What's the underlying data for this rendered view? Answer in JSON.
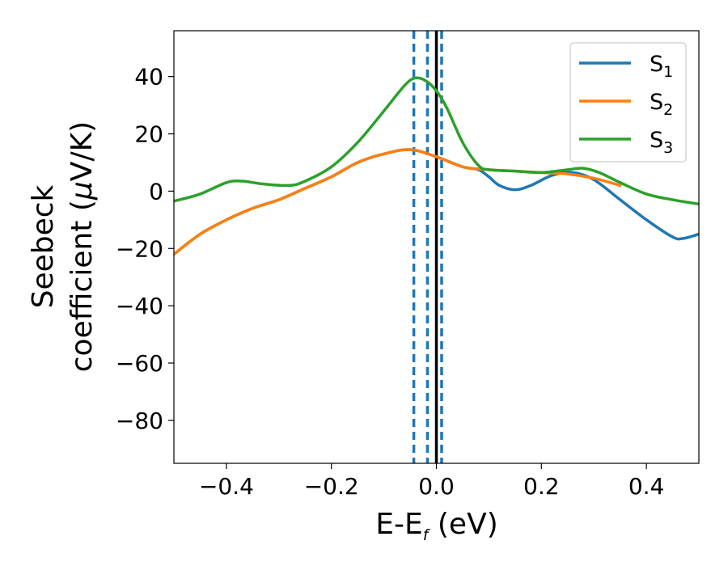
{
  "chart_data": {
    "type": "line",
    "title": "",
    "xlabel": {
      "main": "E-E",
      "sub": "f",
      "unit": " (eV)"
    },
    "ylabel": {
      "line1": "Seebeck",
      "line2": "coefficient  (",
      "mu": "μ",
      "unit": "V/K)"
    },
    "xlim": [
      -0.5,
      0.5
    ],
    "ylim": [
      -95,
      56
    ],
    "xticks": [
      -0.4,
      -0.2,
      0.0,
      0.2,
      0.4
    ],
    "xtick_labels": [
      "−0.4",
      "−0.2",
      "0.0",
      "0.2",
      "0.4"
    ],
    "yticks": [
      -80,
      -60,
      -40,
      -20,
      0,
      20,
      40
    ],
    "ytick_labels": [
      "−80",
      "−60",
      "−40",
      "−20",
      "0",
      "20",
      "40"
    ],
    "legend_position": "top-right",
    "vlines": [
      {
        "x": -0.043,
        "style": "dashed",
        "color": "#1f77b4"
      },
      {
        "x": -0.017,
        "style": "dashed",
        "color": "#1f77b4"
      },
      {
        "x": 0.01,
        "style": "dashed",
        "color": "#1f77b4"
      },
      {
        "x": 0.0,
        "style": "solid",
        "color": "#000000"
      }
    ],
    "series": [
      {
        "name": "S",
        "sub": "1",
        "color": "#1f77b4",
        "x": [
          -0.5,
          -0.45,
          -0.4,
          -0.35,
          -0.3,
          -0.25,
          -0.2,
          -0.15,
          -0.1,
          -0.05,
          0.0,
          0.05,
          0.08,
          0.1,
          0.12,
          0.15,
          0.18,
          0.22,
          0.26,
          0.3,
          0.35,
          0.4,
          0.45,
          0.47,
          0.5
        ],
        "y": [
          -22,
          -15,
          -10,
          -6,
          -3,
          1,
          5,
          10,
          13,
          14.5,
          12,
          8.5,
          7.5,
          5,
          2,
          0.5,
          2,
          5.5,
          6.5,
          4,
          -3,
          -10,
          -16,
          -16.5,
          -15
        ]
      },
      {
        "name": "S",
        "sub": "2",
        "color": "#ff7f0e",
        "x": [
          -0.5,
          -0.45,
          -0.4,
          -0.35,
          -0.3,
          -0.25,
          -0.2,
          -0.15,
          -0.1,
          -0.05,
          0.0,
          0.05,
          0.1,
          0.15,
          0.2,
          0.25,
          0.3,
          0.35
        ],
        "y": [
          -22,
          -15,
          -10,
          -6,
          -3,
          1,
          5,
          10,
          13,
          14.5,
          12,
          8.5,
          7.5,
          7,
          6.5,
          6,
          4.5,
          2
        ]
      },
      {
        "name": "S",
        "sub": "3",
        "color": "#2ca02c",
        "x": [
          -0.5,
          -0.45,
          -0.4,
          -0.37,
          -0.33,
          -0.28,
          -0.25,
          -0.2,
          -0.15,
          -0.1,
          -0.06,
          -0.04,
          -0.02,
          0.0,
          0.02,
          0.05,
          0.08,
          0.1,
          0.15,
          0.2,
          0.25,
          0.28,
          0.31,
          0.35,
          0.4,
          0.45,
          0.5
        ],
        "y": [
          -3.5,
          -1,
          3,
          3.5,
          2.5,
          2,
          3.5,
          8.5,
          17,
          28,
          37,
          39.5,
          38.5,
          35,
          29,
          17,
          9,
          7.5,
          7,
          6.5,
          7.5,
          8,
          6.5,
          3,
          -1,
          -3,
          -4.5
        ]
      }
    ]
  }
}
